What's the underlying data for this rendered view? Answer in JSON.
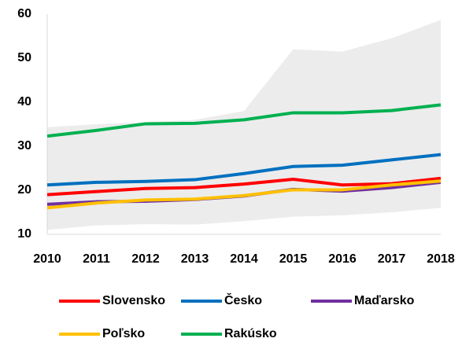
{
  "chart_data": {
    "type": "line",
    "categories": [
      "2010",
      "2011",
      "2012",
      "2013",
      "2014",
      "2015",
      "2016",
      "2017",
      "2018"
    ],
    "band": {
      "color": "#ececec",
      "upper": [
        34.3,
        35,
        35.5,
        36,
        38,
        52,
        51.5,
        54.5,
        58.7
      ],
      "lower": [
        11,
        12,
        12.3,
        12.2,
        13,
        14,
        14.3,
        15,
        16
      ]
    },
    "series": [
      {
        "name": "Slovensko",
        "color": "#ff0000",
        "values": [
          19,
          19.7,
          20.4,
          20.6,
          21.4,
          22.5,
          21.2,
          21.5,
          22.7
        ]
      },
      {
        "name": "Česko",
        "color": "#0070c0",
        "values": [
          21.2,
          21.8,
          22,
          22.4,
          23.8,
          25.4,
          25.7,
          26.9,
          28.1
        ]
      },
      {
        "name": "Maďarsko",
        "color": "#7030a0",
        "values": [
          16.8,
          17.4,
          17.5,
          17.9,
          18.7,
          20.2,
          19.8,
          20.6,
          21.8
        ]
      },
      {
        "name": "Poľsko",
        "color": "#ffc000",
        "values": [
          16,
          17.1,
          17.8,
          18,
          18.8,
          20.1,
          20.1,
          21.2,
          22.1
        ]
      },
      {
        "name": "Rakúsko",
        "color": "#00b050",
        "values": [
          32.3,
          33.6,
          35.1,
          35.2,
          36,
          37.6,
          37.6,
          38.1,
          39.4
        ]
      }
    ],
    "ylim": [
      10,
      60
    ],
    "yticks": [
      10,
      20,
      30,
      40,
      50,
      60
    ],
    "grid": false
  }
}
